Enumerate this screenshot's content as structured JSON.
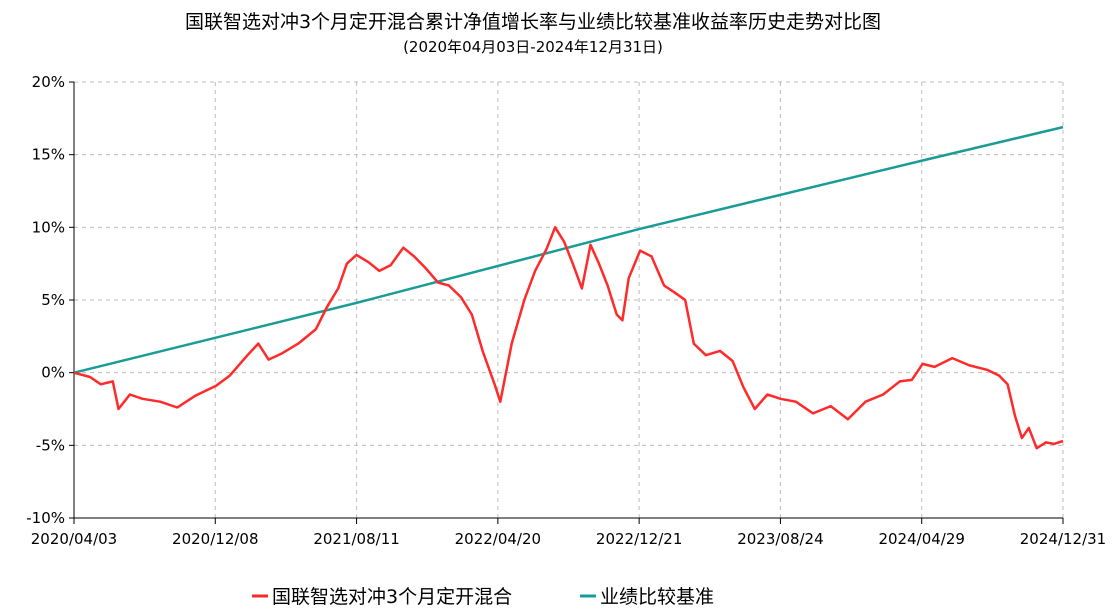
{
  "chart_data": {
    "type": "line",
    "title": "国联智选对冲3个月定开混合累计净值增长率与业绩比较基准收益率历史走势对比图",
    "subtitle": "(2020年04月03日-2024年12月31日)",
    "x_tick_labels": [
      "2020/04/03",
      "2020/12/08",
      "2021/08/11",
      "2022/04/20",
      "2022/12/21",
      "2023/08/24",
      "2024/04/29",
      "2024/12/31"
    ],
    "y_tick_labels": [
      "20%",
      "15%",
      "10%",
      "5%",
      "0%",
      "-5%",
      "-10%"
    ],
    "ylim": [
      -10,
      20
    ],
    "y_ticks": [
      20,
      15,
      10,
      5,
      0,
      -5,
      -10
    ],
    "xlim": [
      "2020-04-03",
      "2024-12-31"
    ],
    "grid": true,
    "legend_position": "bottom-center",
    "series": [
      {
        "name": "国联智选对冲3个月定开混合",
        "color": "#ff2a2a",
        "points": [
          [
            "2020-04-03",
            0.0
          ],
          [
            "2020-05-01",
            -0.3
          ],
          [
            "2020-05-20",
            -0.8
          ],
          [
            "2020-06-10",
            -0.6
          ],
          [
            "2020-06-20",
            -2.5
          ],
          [
            "2020-07-10",
            -1.5
          ],
          [
            "2020-08-01",
            -1.8
          ],
          [
            "2020-09-01",
            -2.0
          ],
          [
            "2020-10-01",
            -2.4
          ],
          [
            "2020-11-01",
            -1.6
          ],
          [
            "2020-12-08",
            -0.9
          ],
          [
            "2021-01-01",
            -0.2
          ],
          [
            "2021-02-01",
            1.2
          ],
          [
            "2021-02-20",
            2.0
          ],
          [
            "2021-03-10",
            0.9
          ],
          [
            "2021-04-01",
            1.3
          ],
          [
            "2021-05-01",
            2.0
          ],
          [
            "2021-06-01",
            3.0
          ],
          [
            "2021-06-20",
            4.5
          ],
          [
            "2021-07-10",
            5.8
          ],
          [
            "2021-07-25",
            7.5
          ],
          [
            "2021-08-11",
            8.1
          ],
          [
            "2021-09-01",
            7.6
          ],
          [
            "2021-09-20",
            7.0
          ],
          [
            "2021-10-10",
            7.4
          ],
          [
            "2021-11-01",
            8.6
          ],
          [
            "2021-11-20",
            8.0
          ],
          [
            "2021-12-10",
            7.2
          ],
          [
            "2022-01-01",
            6.2
          ],
          [
            "2022-01-20",
            6.0
          ],
          [
            "2022-02-10",
            5.2
          ],
          [
            "2022-03-01",
            4.0
          ],
          [
            "2022-03-20",
            1.5
          ],
          [
            "2022-04-10",
            -0.8
          ],
          [
            "2022-04-20",
            -2.0
          ],
          [
            "2022-05-10",
            2.0
          ],
          [
            "2022-06-01",
            5.0
          ],
          [
            "2022-06-20",
            7.0
          ],
          [
            "2022-07-10",
            8.5
          ],
          [
            "2022-07-25",
            10.0
          ],
          [
            "2022-08-10",
            9.0
          ],
          [
            "2022-08-25",
            7.5
          ],
          [
            "2022-09-10",
            5.8
          ],
          [
            "2022-09-25",
            8.8
          ],
          [
            "2022-10-10",
            7.5
          ],
          [
            "2022-10-25",
            6.0
          ],
          [
            "2022-11-10",
            4.0
          ],
          [
            "2022-11-20",
            3.6
          ],
          [
            "2022-12-01",
            6.5
          ],
          [
            "2022-12-21",
            8.4
          ],
          [
            "2023-01-10",
            8.0
          ],
          [
            "2023-02-01",
            6.0
          ],
          [
            "2023-02-20",
            5.5
          ],
          [
            "2023-03-10",
            5.0
          ],
          [
            "2023-03-25",
            2.0
          ],
          [
            "2023-04-15",
            1.2
          ],
          [
            "2023-05-10",
            1.5
          ],
          [
            "2023-06-01",
            0.8
          ],
          [
            "2023-06-20",
            -1.0
          ],
          [
            "2023-07-10",
            -2.5
          ],
          [
            "2023-08-01",
            -1.5
          ],
          [
            "2023-08-24",
            -1.8
          ],
          [
            "2023-09-20",
            -2.0
          ],
          [
            "2023-10-20",
            -2.8
          ],
          [
            "2023-11-20",
            -2.3
          ],
          [
            "2023-12-20",
            -3.2
          ],
          [
            "2024-01-20",
            -2.0
          ],
          [
            "2024-02-20",
            -1.5
          ],
          [
            "2024-03-20",
            -0.6
          ],
          [
            "2024-04-10",
            -0.5
          ],
          [
            "2024-04-29",
            0.6
          ],
          [
            "2024-05-20",
            0.4
          ],
          [
            "2024-06-20",
            1.0
          ],
          [
            "2024-07-20",
            0.5
          ],
          [
            "2024-08-20",
            0.2
          ],
          [
            "2024-09-10",
            -0.2
          ],
          [
            "2024-09-25",
            -0.8
          ],
          [
            "2024-10-08",
            -3.0
          ],
          [
            "2024-10-20",
            -4.5
          ],
          [
            "2024-11-01",
            -3.8
          ],
          [
            "2024-11-15",
            -5.2
          ],
          [
            "2024-12-01",
            -4.8
          ],
          [
            "2024-12-15",
            -4.9
          ],
          [
            "2024-12-31",
            -4.7
          ]
        ]
      },
      {
        "name": "业绩比较基准",
        "color": "#1a9c96",
        "points": [
          [
            "2020-04-03",
            0.0
          ],
          [
            "2021-08-11",
            4.8
          ],
          [
            "2022-12-21",
            9.9
          ],
          [
            "2024-04-29",
            14.6
          ],
          [
            "2024-12-31",
            16.9
          ]
        ]
      }
    ]
  }
}
